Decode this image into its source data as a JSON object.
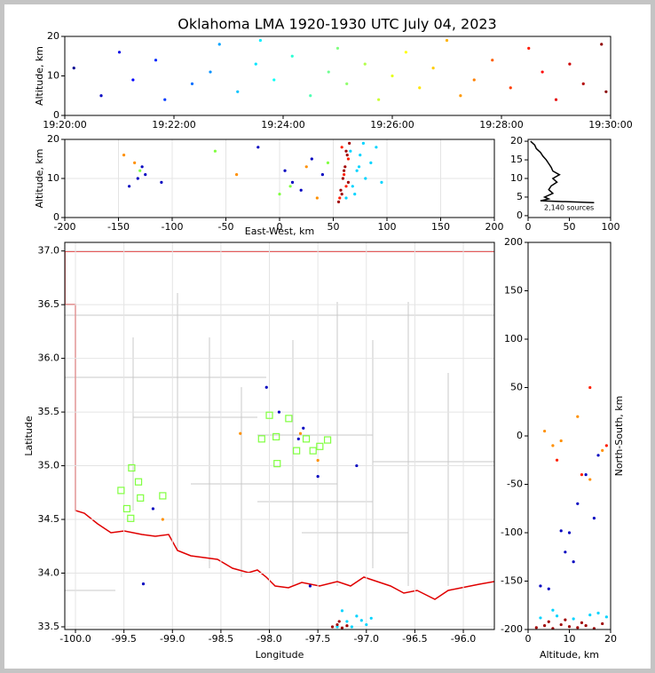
{
  "chart_data": [
    {
      "type": "scatter",
      "title": "Oklahoma LMA 1920-1930 UTC July 04, 2023",
      "ylabel": "Altitude, km",
      "colormap": "jet",
      "xlim": [
        "19:20:00",
        "19:30:00"
      ],
      "xticks": [
        "19:20:00",
        "19:22:00",
        "19:24:00",
        "19:26:00",
        "19:28:00",
        "19:30:00"
      ],
      "ylim": [
        0,
        20
      ],
      "yticks": [
        0,
        10,
        20
      ],
      "series": [
        {
          "x": [
            "19:20:10",
            "19:20:40",
            "19:21:00",
            "19:21:15",
            "19:21:40",
            "19:21:50",
            "19:22:20",
            "19:22:40",
            "19:22:50",
            "19:23:10",
            "19:23:30",
            "19:23:35",
            "19:23:50",
            "19:24:10",
            "19:24:30",
            "19:24:50",
            "19:25:00",
            "19:25:10",
            "19:25:30",
            "19:25:45",
            "19:26:00",
            "19:26:15",
            "19:26:30",
            "19:26:45",
            "19:27:00",
            "19:27:15",
            "19:27:30",
            "19:27:50",
            "19:28:10",
            "19:28:30",
            "19:28:45",
            "19:29:00",
            "19:29:15",
            "19:29:30",
            "19:29:50",
            "19:29:55"
          ],
          "y": [
            12,
            5,
            16,
            9,
            14,
            4,
            8,
            11,
            18,
            6,
            13,
            19,
            9,
            15,
            5,
            11,
            17,
            8,
            13,
            4,
            10,
            16,
            7,
            12,
            19,
            5,
            9,
            14,
            7,
            17,
            11,
            4,
            13,
            8,
            18,
            6
          ]
        }
      ]
    },
    {
      "type": "scatter",
      "xlabel": "East-West, km",
      "ylabel": "Altitude, km",
      "grid": true,
      "xlim": [
        -200,
        200
      ],
      "xticks": [
        -200,
        -150,
        -100,
        -50,
        0,
        50,
        100,
        150,
        200
      ],
      "ylim": [
        0,
        20
      ],
      "yticks": [
        0,
        10,
        20
      ],
      "series": [
        {
          "color": "#0000c0",
          "x": [
            -140,
            -132,
            -128,
            -125,
            -110,
            -20,
            5,
            12,
            20,
            30,
            40
          ],
          "y": [
            8,
            10,
            13,
            11,
            9,
            18,
            12,
            9,
            7,
            15,
            11
          ]
        },
        {
          "color": "#80ff40",
          "x": [
            -130,
            -60,
            0,
            10,
            45
          ],
          "y": [
            12,
            17,
            6,
            8,
            14
          ]
        },
        {
          "color": "#ff9000",
          "x": [
            -145,
            -135,
            -40,
            25,
            35
          ],
          "y": [
            16,
            14,
            11,
            13,
            5
          ]
        },
        {
          "color": "#00d4ff",
          "x": [
            62,
            68,
            72,
            75,
            78,
            80,
            85,
            90,
            95,
            70,
            74,
            66
          ],
          "y": [
            5,
            8,
            12,
            16,
            19,
            10,
            14,
            18,
            9,
            6,
            13,
            17
          ]
        },
        {
          "color": "#ff2000",
          "x": [
            56,
            60,
            64,
            58,
            62
          ],
          "y": [
            5,
            11,
            15,
            18,
            8
          ]
        },
        {
          "color": "#a00000",
          "x": [
            55,
            57,
            59,
            61,
            63,
            65,
            58,
            60,
            62,
            64
          ],
          "y": [
            4,
            7,
            10,
            13,
            16,
            19,
            6,
            12,
            17,
            9
          ]
        }
      ]
    },
    {
      "type": "line",
      "annotation": "2,140 sources",
      "color": "#000000",
      "xlim": [
        0,
        100
      ],
      "xticks": [
        0,
        50,
        100
      ],
      "ylim": [
        -0.5,
        20.5
      ],
      "yticks": [
        0,
        5,
        10,
        15,
        20
      ],
      "x": [
        80,
        15,
        25,
        20,
        30,
        25,
        28,
        35,
        30,
        38,
        30,
        28,
        25,
        22,
        18,
        15,
        10,
        8,
        3
      ],
      "y": [
        3.5,
        4,
        4.5,
        5,
        6,
        7,
        8,
        9,
        10,
        11,
        12,
        13,
        14,
        15,
        16,
        17,
        18,
        19,
        20
      ]
    },
    {
      "type": "scatter",
      "xlabel": "Longitude",
      "ylabel": "Latitude",
      "grid": true,
      "xlim": [
        -100.11,
        -95.68
      ],
      "xticks": [
        {
          "value": -100,
          "label": "-100.0"
        },
        -99.5,
        {
          "value": -99,
          "label": "-99.0"
        },
        -98.5,
        {
          "value": -98,
          "label": "-98.0"
        },
        -97.5,
        {
          "value": -97,
          "label": "-97.0"
        },
        -96.5,
        {
          "value": -96,
          "label": "-96.0"
        }
      ],
      "ylim": [
        33.475,
        37.08
      ],
      "yticks": [
        33.5,
        {
          "value": 34,
          "label": "34.0"
        },
        34.5,
        {
          "value": 35,
          "label": "35.0"
        },
        35.5,
        {
          "value": 36,
          "label": "36.0"
        },
        36.5,
        {
          "value": 37,
          "label": "37.0"
        }
      ],
      "series": [
        {
          "color": "#0000c0",
          "x": [
            -97.9,
            -97.7,
            -97.5,
            -97.1,
            -99.3,
            -99.2,
            -97.58,
            -98.03,
            -97.65
          ],
          "y": [
            35.5,
            35.25,
            34.9,
            35.0,
            33.9,
            34.6,
            33.88,
            35.73,
            35.35
          ]
        },
        {
          "color": "#ff9000",
          "x": [
            -97.68,
            -97.5,
            -98.3,
            -99.1
          ],
          "y": [
            35.3,
            35.05,
            35.3,
            34.5
          ]
        },
        {
          "color": "#00d4ff",
          "x": [
            -97.3,
            -97.2,
            -97.1,
            -97.0,
            -96.95,
            -97.25,
            -97.15,
            -97.05
          ],
          "y": [
            33.5,
            33.55,
            33.6,
            33.52,
            33.58,
            33.65,
            33.5,
            33.56
          ]
        },
        {
          "color": "#a00000",
          "x": [
            -97.35,
            -97.3,
            -97.25,
            -97.2,
            -97.28
          ],
          "y": [
            33.5,
            33.52,
            33.49,
            33.51,
            33.55
          ]
        },
        {
          "color": "#80ff40",
          "marker": "square",
          "x": [
            -98.0,
            -97.8,
            -98.08,
            -97.93,
            -97.62,
            -97.72,
            -97.55,
            -97.48,
            -97.4,
            -97.92,
            -99.42,
            -99.35,
            -99.1,
            -99.33,
            -99.53,
            -99.47,
            -99.43
          ],
          "y": [
            35.47,
            35.44,
            35.25,
            35.27,
            35.25,
            35.14,
            35.14,
            35.18,
            35.24,
            35.02,
            34.98,
            34.85,
            34.72,
            34.7,
            34.77,
            34.6,
            34.51
          ]
        }
      ]
    },
    {
      "type": "scatter",
      "xlabel": "Altitude, km",
      "ylabel": "North-South, km",
      "xlim": [
        0,
        20
      ],
      "xticks": [
        0,
        10,
        20
      ],
      "ylim": [
        -200,
        200
      ],
      "yticks": [
        -200,
        -150,
        -100,
        -50,
        0,
        50,
        100,
        150,
        200
      ],
      "series": [
        {
          "color": "#0000c0",
          "x": [
            3,
            5,
            9,
            10,
            12,
            14,
            17,
            8,
            16,
            11
          ],
          "y": [
            -155,
            -158,
            -120,
            -100,
            -70,
            -40,
            -20,
            -98,
            -85,
            -130
          ]
        },
        {
          "color": "#ff9000",
          "x": [
            6,
            8,
            15,
            18,
            12,
            4
          ],
          "y": [
            -10,
            -5,
            -45,
            -15,
            20,
            5
          ]
        },
        {
          "color": "#ff2000",
          "x": [
            15,
            13,
            19,
            7
          ],
          "y": [
            50,
            -40,
            -10,
            -25
          ]
        },
        {
          "color": "#00d4ff",
          "x": [
            3,
            7,
            11,
            15,
            19,
            6,
            17
          ],
          "y": [
            -188,
            -186,
            -189,
            -185,
            -187,
            -180,
            -183
          ]
        },
        {
          "color": "#a00000",
          "x": [
            2,
            4,
            6,
            8,
            10,
            12,
            14,
            16,
            18,
            5,
            9,
            13
          ],
          "y": [
            -198,
            -196,
            -199,
            -195,
            -197,
            -198,
            -196,
            -199,
            -194,
            -192,
            -190,
            -193
          ]
        }
      ]
    }
  ]
}
